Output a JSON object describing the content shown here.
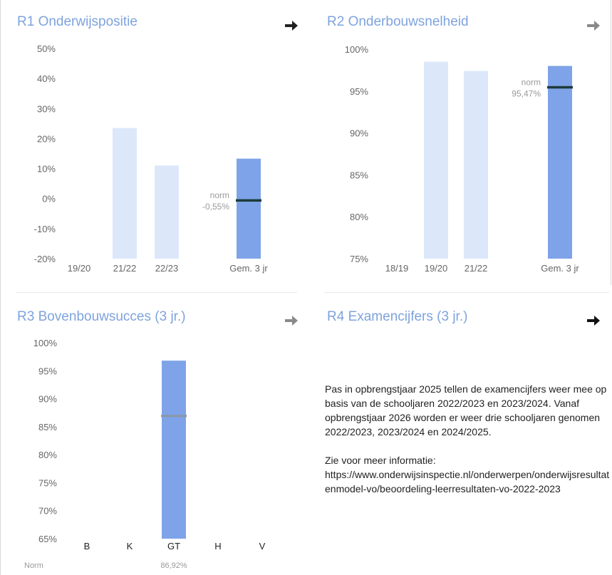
{
  "panels": {
    "r1": {
      "title": "R1 Onderwijspositie",
      "arrow_icon": "arrow-right-icon",
      "arrow_color": "#222222",
      "chart_data": {
        "type": "bar",
        "categories": [
          "19/20",
          "21/22",
          "22/23",
          "Gem. 3 jr"
        ],
        "values": [
          null,
          23.5,
          11,
          13.3
        ],
        "ylim": [
          -20,
          50
        ],
        "yticks": [
          "50%",
          "40%",
          "30%",
          "20%",
          "10%",
          "0%",
          "-10%",
          "-20%"
        ],
        "norm_label": "norm",
        "norm_value_label": "-0,55%",
        "norm": -0.55
      }
    },
    "r2": {
      "title": "R2 Onderbouwsnelheid",
      "arrow_icon": "arrow-right-icon",
      "arrow_color": "#8a8a8a",
      "chart_data": {
        "type": "bar",
        "categories": [
          "18/19",
          "19/20",
          "21/22",
          "Gem. 3 jr"
        ],
        "values": [
          null,
          98.5,
          97.4,
          98
        ],
        "ylim": [
          75,
          100
        ],
        "yticks": [
          "100%",
          "95%",
          "90%",
          "85%",
          "80%",
          "75%"
        ],
        "norm_label": "norm",
        "norm_value_label": "95,47%",
        "norm": 95.47
      }
    },
    "r3": {
      "title": "R3 Bovenbouwsucces (3 jr.)",
      "arrow_icon": "arrow-right-icon",
      "arrow_color": "#8a8a8a",
      "chart_data": {
        "type": "bar",
        "categories": [
          "B",
          "K",
          "GT",
          "H",
          "V"
        ],
        "values": [
          null,
          null,
          96.8,
          null,
          null
        ],
        "ylim": [
          65,
          100
        ],
        "yticks": [
          "100%",
          "95%",
          "90%",
          "85%",
          "80%",
          "75%",
          "70%",
          "65%"
        ],
        "norm": 86.92,
        "norm_row_label": "Norm",
        "norm_row_values": [
          "",
          "",
          "86,92%",
          "",
          ""
        ]
      }
    },
    "r4": {
      "title": "R4 Examencijfers (3 jr.)",
      "arrow_icon": "arrow-right-icon",
      "arrow_color": "#111111",
      "paragraph1": "Pas in opbrengstjaar 2025 tellen de examencijfers weer mee op basis van de schooljaren 2022/2023 en 2023/2024. Vanaf opbrengstjaar 2026 worden er weer drie schooljaren genomen 2022/2023, 2023/2024 en 2024/2025.",
      "paragraph2_label": "Zie voor meer informatie:",
      "link": "https://www.onderwijsinspectie.nl/onderwerpen/onderwijsresultatenmodel-vo/beoordeling-leerresultaten-vo-2022-2023"
    }
  },
  "colors": {
    "title": "#7ea3dd",
    "bar_light": "#dce8fa",
    "bar_dark": "#7ea3e8",
    "norm_line_dark": "#1e3a3a",
    "norm_line_grey": "#8b97a8",
    "axis_text": "#666666"
  }
}
